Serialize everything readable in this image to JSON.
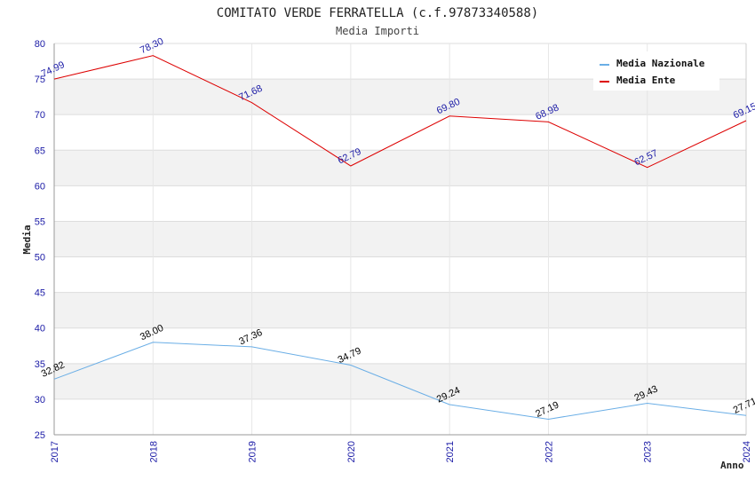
{
  "chart_data": {
    "type": "line",
    "title": "COMITATO VERDE FERRATELLA (c.f.97873340588)",
    "subtitle": "Media Importi",
    "xlabel": "Anno",
    "ylabel": "Media",
    "x": [
      "2017",
      "2018",
      "2019",
      "2020",
      "2021",
      "2022",
      "2023",
      "2024"
    ],
    "ylim": [
      25,
      80
    ],
    "yticks": [
      25,
      30,
      35,
      40,
      45,
      50,
      55,
      60,
      65,
      70,
      75,
      80
    ],
    "series": [
      {
        "name": "Media Nazionale",
        "color": "#6aaee6",
        "label_color": "#000000",
        "values": [
          32.82,
          38.0,
          37.36,
          34.79,
          29.24,
          27.19,
          29.43,
          27.71
        ],
        "labels": [
          "32.82",
          "38.00",
          "37.36",
          "34.79",
          "29.24",
          "27.19",
          "29.43",
          "27.71"
        ]
      },
      {
        "name": "Media Ente",
        "color": "#dd0000",
        "label_color": "#1a1aa6",
        "values": [
          74.99,
          78.3,
          71.68,
          62.79,
          69.8,
          68.98,
          62.57,
          69.15
        ],
        "labels": [
          "74.99",
          "78.30",
          "71.68",
          "62.79",
          "69.80",
          "68.98",
          "62.57",
          "69.15"
        ]
      }
    ],
    "legend_position": "top-right",
    "grid": true
  }
}
